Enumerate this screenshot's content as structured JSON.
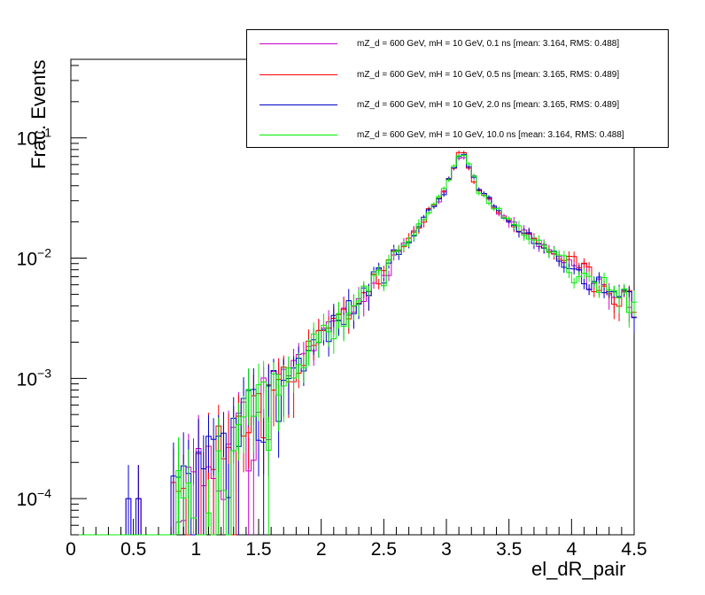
{
  "chart_data": {
    "type": "step",
    "xlabel": "el_dR_pair",
    "ylabel": "Frac. Events",
    "xlim": [
      0,
      4.5
    ],
    "ylim": [
      5e-05,
      0.45
    ],
    "yscale": "log",
    "x_ticks": [
      "0",
      "0.5",
      "1",
      "1.5",
      "2",
      "2.5",
      "3",
      "3.5",
      "4",
      "4.5"
    ],
    "y_ticks": [
      {
        "value": 0.0001,
        "base": "10",
        "exp": "−4"
      },
      {
        "value": 0.001,
        "base": "10",
        "exp": "−3"
      },
      {
        "value": 0.01,
        "base": "10",
        "exp": "−2"
      },
      {
        "value": 0.1,
        "base": "10",
        "exp": "−1"
      }
    ],
    "legend_position": "top-right",
    "series": [
      {
        "name": "mZ_d = 600 GeV, mH = 10 GeV, 0.1 ns [mean: 3.164, RMS: 0.488]",
        "color": "#cc00cc",
        "seed": 11
      },
      {
        "name": "mZ_d = 600 GeV, mH = 10 GeV, 0.5 ns [mean: 3.165, RMS: 0.489]",
        "color": "#ff0000",
        "seed": 23
      },
      {
        "name": "mZ_d = 600 GeV, mH = 10 GeV, 2.0 ns [mean: 3.165, RMS: 0.489]",
        "color": "#0000cc",
        "seed": 37
      },
      {
        "name": "mZ_d = 600 GeV, mH = 10 GeV, 10.0 ns [mean: 3.164, RMS: 0.488]",
        "color": "#00ee00",
        "seed": 53
      }
    ],
    "bins": {
      "min": 0,
      "max": 4.5,
      "width": 0.04
    },
    "shape": {
      "peak_x": 3.12,
      "peak_y": 0.082,
      "left_points": [
        [
          0.85,
          0.0001
        ],
        [
          1.5,
          0.0006
        ],
        [
          2.0,
          0.0022
        ],
        [
          2.5,
          0.0075
        ],
        [
          3.0,
          0.038
        ],
        [
          3.12,
          0.082
        ]
      ],
      "right_points": [
        [
          3.12,
          0.082
        ],
        [
          3.25,
          0.038
        ],
        [
          3.5,
          0.02
        ],
        [
          4.0,
          0.0085
        ],
        [
          4.5,
          0.0042
        ]
      ],
      "low_x_spikes": [
        [
          0.46,
          0.0001
        ],
        [
          0.54,
          0.0001
        ]
      ]
    }
  }
}
